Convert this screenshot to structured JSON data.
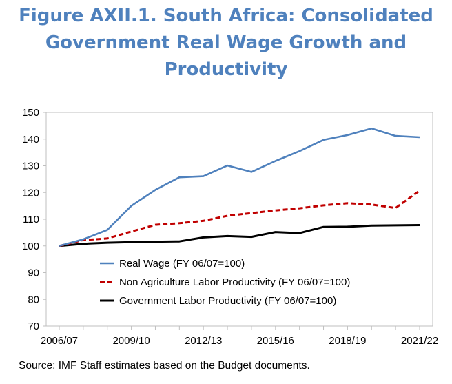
{
  "figure": {
    "title_lines": [
      "Figure AXII.1. South Africa: Consolidated",
      "Government Real Wage Growth and",
      "Productivity"
    ],
    "source": "Source: IMF Staff estimates based on the Budget documents."
  },
  "chart_data": {
    "type": "line",
    "title": "Figure AXII.1. South Africa: Consolidated Government Real Wage Growth and Productivity",
    "x": [
      "2006/07",
      "2007/08",
      "2008/09",
      "2009/10",
      "2010/11",
      "2011/12",
      "2012/13",
      "2013/14",
      "2014/15",
      "2015/16",
      "2016/17",
      "2017/18",
      "2018/19",
      "2019/20",
      "2020/21",
      "2021/22"
    ],
    "x_tick_labels": [
      "2006/07",
      "2009/10",
      "2012/13",
      "2015/16",
      "2018/19",
      "2021/22"
    ],
    "x_tick_every": 3,
    "ylim": [
      70,
      150
    ],
    "y_ticks": [
      70,
      80,
      90,
      100,
      110,
      120,
      130,
      140,
      150
    ],
    "xlabel": "",
    "ylabel": "",
    "grid": false,
    "legend_placement": "bottom-left inside plot",
    "series": [
      {
        "name": "Real Wage (FY 06/07=100)",
        "color": "#4f81bd",
        "style": "solid",
        "values": [
          100,
          102.5,
          106,
          115,
          121,
          125.7,
          126.1,
          130.1,
          127.7,
          131.8,
          135.5,
          139.7,
          141.5,
          144.0,
          141.2,
          140.7
        ]
      },
      {
        "name": "Non Agriculture Labor Productivity (FY 06/07=100)",
        "color": "#c00000",
        "style": "dashed",
        "values": [
          100,
          102.2,
          102.8,
          105.4,
          107.9,
          108.5,
          109.4,
          111.3,
          112.3,
          113.3,
          114.1,
          115.2,
          116.0,
          115.5,
          114.2,
          120.7
        ]
      },
      {
        "name": "Government Labor Productivity (FY 06/07=100)",
        "color": "#000000",
        "style": "solid",
        "values": [
          100,
          100.8,
          101.2,
          101.4,
          101.6,
          101.7,
          103.2,
          103.7,
          103.4,
          105.2,
          104.8,
          107.1,
          107.2,
          107.6,
          107.7,
          107.8
        ]
      }
    ]
  }
}
